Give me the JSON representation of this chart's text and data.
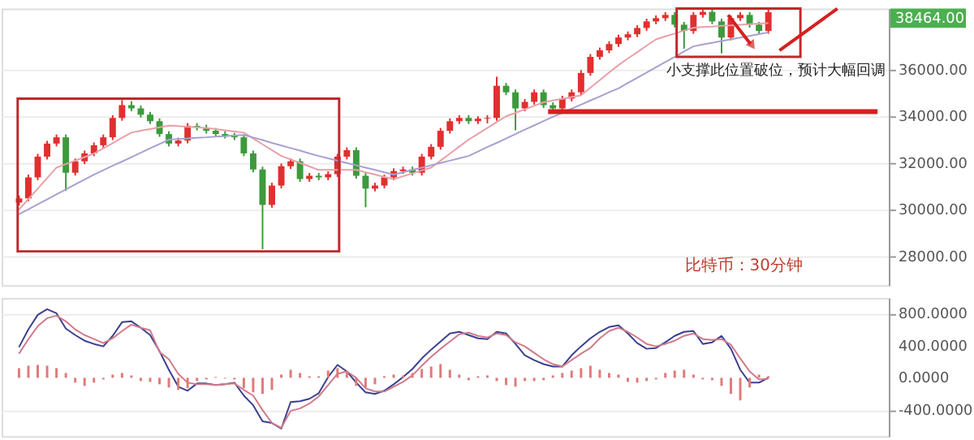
{
  "chart_data": [
    {
      "type": "candlestick",
      "categories": [
        null,
        null,
        null,
        null,
        null,
        null,
        null,
        null,
        null,
        null,
        null,
        null,
        null,
        null,
        null,
        null,
        null,
        null,
        null,
        null,
        null,
        null,
        null,
        null,
        null,
        null,
        null,
        null,
        null,
        null,
        null,
        null,
        null,
        null,
        null,
        null,
        null,
        null,
        null,
        null,
        null,
        null,
        null,
        null,
        null,
        null,
        null,
        null,
        null,
        null,
        null,
        null,
        null,
        null,
        null,
        null,
        null,
        null,
        null,
        null,
        null,
        null,
        null,
        null,
        null,
        null,
        null,
        null,
        null,
        null,
        null,
        null,
        null,
        null,
        null,
        null,
        null,
        null,
        null,
        null,
        null
      ],
      "ohlc": [
        [
          30300,
          30600,
          30180,
          30480
        ],
        [
          30480,
          31500,
          30360,
          31380
        ],
        [
          31380,
          32390,
          31260,
          32270
        ],
        [
          32270,
          32950,
          32150,
          32830
        ],
        [
          32830,
          33220,
          32710,
          33100
        ],
        [
          33100,
          33220,
          30800,
          31580
        ],
        [
          31580,
          32190,
          31460,
          32070
        ],
        [
          32070,
          32530,
          31950,
          32410
        ],
        [
          32410,
          32880,
          32290,
          32760
        ],
        [
          32760,
          33220,
          32640,
          33100
        ],
        [
          33100,
          34050,
          32980,
          33930
        ],
        [
          33930,
          34700,
          33810,
          34480
        ],
        [
          34480,
          34650,
          34220,
          34340
        ],
        [
          34340,
          34460,
          33950,
          34070
        ],
        [
          34070,
          34190,
          33670,
          33790
        ],
        [
          33790,
          33910,
          33120,
          33240
        ],
        [
          33240,
          33360,
          32710,
          32830
        ],
        [
          32830,
          33080,
          32710,
          32960
        ],
        [
          32960,
          33710,
          32840,
          33590
        ],
        [
          33590,
          33710,
          33400,
          33520
        ],
        [
          33520,
          33640,
          33260,
          33380
        ],
        [
          33380,
          33500,
          33120,
          33240
        ],
        [
          33240,
          33360,
          33050,
          33170
        ],
        [
          33170,
          33290,
          32980,
          33100
        ],
        [
          33100,
          33220,
          32290,
          32410
        ],
        [
          32410,
          32530,
          31600,
          31720
        ],
        [
          31720,
          31840,
          28300,
          30200
        ],
        [
          30200,
          31150,
          30080,
          31030
        ],
        [
          31030,
          31980,
          30910,
          31860
        ],
        [
          31860,
          32190,
          31740,
          32070
        ],
        [
          32070,
          32190,
          31190,
          31310
        ],
        [
          31310,
          31570,
          31190,
          31450
        ],
        [
          31450,
          31570,
          31260,
          31380
        ],
        [
          31380,
          31640,
          31260,
          31520
        ],
        [
          31520,
          32390,
          31400,
          32270
        ],
        [
          32270,
          32670,
          32150,
          32550
        ],
        [
          32550,
          32670,
          31330,
          31450
        ],
        [
          31450,
          31570,
          30100,
          30900
        ],
        [
          30900,
          31150,
          30780,
          31030
        ],
        [
          31030,
          31500,
          30910,
          31380
        ],
        [
          31380,
          31770,
          31260,
          31650
        ],
        [
          31650,
          31840,
          31530,
          31720
        ],
        [
          31720,
          31840,
          31460,
          31580
        ],
        [
          31580,
          32390,
          31460,
          32270
        ],
        [
          32270,
          32810,
          32150,
          32690
        ],
        [
          32690,
          33500,
          32570,
          33380
        ],
        [
          33380,
          33910,
          33260,
          33790
        ],
        [
          33790,
          34050,
          33670,
          33930
        ],
        [
          33930,
          34050,
          33670,
          33790
        ],
        [
          33790,
          34000,
          33670,
          33900
        ],
        [
          33900,
          34050,
          33700,
          33930
        ],
        [
          33930,
          35700,
          33810,
          35310
        ],
        [
          35310,
          35430,
          34910,
          35030
        ],
        [
          35030,
          35150,
          33400,
          34340
        ],
        [
          34340,
          34740,
          34220,
          34620
        ],
        [
          34620,
          35150,
          34500,
          35030
        ],
        [
          35030,
          35150,
          34360,
          34480
        ],
        [
          34480,
          34600,
          34220,
          34340
        ],
        [
          34340,
          34880,
          34220,
          34760
        ],
        [
          34760,
          35150,
          34640,
          35030
        ],
        [
          35030,
          35980,
          34910,
          35860
        ],
        [
          35860,
          36670,
          35740,
          36550
        ],
        [
          36550,
          36950,
          36430,
          36830
        ],
        [
          36830,
          37220,
          36710,
          37100
        ],
        [
          37100,
          37500,
          36980,
          37380
        ],
        [
          37380,
          37640,
          37260,
          37520
        ],
        [
          37520,
          37910,
          37400,
          37790
        ],
        [
          37790,
          38190,
          37670,
          38070
        ],
        [
          38070,
          38330,
          37950,
          38210
        ],
        [
          38210,
          38470,
          38090,
          38350
        ],
        [
          38350,
          38470,
          37810,
          37930
        ],
        [
          37930,
          38050,
          36900,
          37660
        ],
        [
          37660,
          38470,
          37540,
          38350
        ],
        [
          38350,
          38600,
          38230,
          38480
        ],
        [
          38480,
          38600,
          37950,
          38070
        ],
        [
          38070,
          38190,
          36700,
          37380
        ],
        [
          37380,
          38330,
          37260,
          38210
        ],
        [
          38210,
          38470,
          38090,
          38350
        ],
        [
          38350,
          38470,
          37810,
          37930
        ],
        [
          37930,
          38050,
          37540,
          37660
        ],
        [
          37660,
          38580,
          37540,
          38464
        ]
      ],
      "colors": [
        "#e0302f",
        "#e0302f",
        "#e0302f",
        "#e0302f",
        "#e0302f",
        "#3c9a3c",
        "#e0302f",
        "#e0302f",
        "#e0302f",
        "#e0302f",
        "#e0302f",
        "#e0302f",
        "#3c9a3c",
        "#3c9a3c",
        "#3c9a3c",
        "#3c9a3c",
        "#3c9a3c",
        "#e0302f",
        "#e0302f",
        "#3c9a3c",
        "#3c9a3c",
        "#3c9a3c",
        "#3c9a3c",
        "#3c9a3c",
        "#3c9a3c",
        "#3c9a3c",
        "#3c9a3c",
        "#e0302f",
        "#e0302f",
        "#e0302f",
        "#3c9a3c",
        "#e0302f",
        "#3c9a3c",
        "#e0302f",
        "#e0302f",
        "#e0302f",
        "#3c9a3c",
        "#3c9a3c",
        "#e0302f",
        "#e0302f",
        "#e0302f",
        "#e0302f",
        "#3c9a3c",
        "#e0302f",
        "#e0302f",
        "#e0302f",
        "#e0302f",
        "#e0302f",
        "#3c9a3c",
        "#e0302f",
        "#e0302f",
        "#e0302f",
        "#3c9a3c",
        "#3c9a3c",
        "#e0302f",
        "#e0302f",
        "#3c9a3c",
        "#3c9a3c",
        "#e0302f",
        "#e0302f",
        "#e0302f",
        "#e0302f",
        "#e0302f",
        "#e0302f",
        "#e0302f",
        "#e0302f",
        "#e0302f",
        "#e0302f",
        "#e0302f",
        "#e0302f",
        "#3c9a3c",
        "#3c9a3c",
        "#e0302f",
        "#e0302f",
        "#3c9a3c",
        "#3c9a3c",
        "#e0302f",
        "#e0302f",
        "#3c9a3c",
        "#3c9a3c",
        "#e0302f"
      ],
      "series": [
        {
          "type": "line",
          "color": "#e8a0a8",
          "values": [
            30000,
            30450,
            30900,
            31350,
            31800,
            31950,
            32100,
            32250,
            32400,
            32630,
            32850,
            33080,
            33300,
            33380,
            33450,
            33530,
            33600,
            33580,
            33550,
            33530,
            33500,
            33450,
            33400,
            33350,
            33300,
            33050,
            32800,
            32550,
            32300,
            32150,
            32000,
            31850,
            31700,
            31700,
            31700,
            31700,
            31700,
            31600,
            31500,
            31400,
            31300,
            31430,
            31550,
            31680,
            31800,
            32100,
            32400,
            32700,
            33000,
            33250,
            33500,
            33750,
            34000,
            34150,
            34300,
            34450,
            34600,
            34680,
            34750,
            34830,
            34900,
            35230,
            35550,
            35880,
            36200,
            36480,
            36750,
            37030,
            37300,
            37430,
            37550,
            37680,
            37800,
            37830,
            37850,
            37880,
            37900,
            37930,
            37950,
            37980,
            38000
          ]
        },
        {
          "type": "line",
          "color": "#a8a0d0",
          "values": [
            29800,
            30010,
            30230,
            30440,
            30650,
            30860,
            31080,
            31290,
            31500,
            31690,
            31880,
            32060,
            32250,
            32440,
            32630,
            32810,
            33000,
            33030,
            33050,
            33080,
            33100,
            33130,
            33150,
            33180,
            33200,
            33090,
            32980,
            32860,
            32750,
            32640,
            32530,
            32410,
            32300,
            32200,
            32100,
            32000,
            31900,
            31800,
            31700,
            31600,
            31500,
            31600,
            31700,
            31800,
            31900,
            32000,
            32100,
            32200,
            32300,
            32490,
            32680,
            32860,
            33050,
            33240,
            33430,
            33610,
            33800,
            33980,
            34150,
            34330,
            34500,
            34680,
            34850,
            35030,
            35200,
            35430,
            35650,
            35880,
            36100,
            36330,
            36550,
            36780,
            37000,
            37080,
            37150,
            37230,
            37300,
            37380,
            37450,
            37530,
            37600
          ]
        }
      ],
      "ylim": [
        26760,
        38620
      ],
      "yticks": [
        {
          "value": 28000,
          "label": "28000.00"
        },
        {
          "value": 30000,
          "label": "30000.00"
        },
        {
          "value": 32000,
          "label": "32000.00"
        },
        {
          "value": 34000,
          "label": "34000.00"
        },
        {
          "value": 36000,
          "label": "36000.00"
        }
      ],
      "ref_lines": [
        {
          "axis": "y",
          "value": 34200,
          "color": "#d42020"
        }
      ],
      "annotations": [
        "小支撑此位置破位，预计大幅回调",
        "38464.00",
        "比特币：30分钟"
      ],
      "grid": "y",
      "tick_labels": "y"
    },
    {
      "type": "line",
      "categories": [
        null,
        null,
        null,
        null,
        null,
        null,
        null,
        null,
        null,
        null,
        null,
        null,
        null,
        null,
        null,
        null,
        null,
        null,
        null,
        null,
        null,
        null,
        null,
        null,
        null,
        null,
        null,
        null,
        null,
        null,
        null,
        null,
        null,
        null,
        null,
        null,
        null,
        null,
        null,
        null,
        null,
        null,
        null,
        null,
        null,
        null,
        null,
        null,
        null,
        null,
        null,
        null,
        null,
        null,
        null,
        null,
        null,
        null,
        null,
        null,
        null,
        null,
        null,
        null,
        null,
        null,
        null,
        null,
        null,
        null,
        null,
        null,
        null,
        null,
        null,
        null,
        null,
        null,
        null,
        null,
        null
      ],
      "series": [
        {
          "color": "#3b3f8f",
          "values": [
            380,
            600,
            780,
            850,
            800,
            610,
            530,
            460,
            420,
            390,
            520,
            690,
            700,
            620,
            530,
            330,
            100,
            -110,
            -160,
            -70,
            -70,
            -90,
            -80,
            -60,
            -220,
            -340,
            -540,
            -560,
            -630,
            -300,
            -290,
            -260,
            -190,
            10,
            160,
            80,
            -60,
            -180,
            -200,
            -160,
            -80,
            10,
            110,
            240,
            350,
            450,
            550,
            570,
            530,
            490,
            480,
            570,
            550,
            420,
            280,
            220,
            170,
            140,
            140,
            280,
            390,
            490,
            570,
            630,
            650,
            550,
            430,
            360,
            370,
            440,
            520,
            570,
            580,
            420,
            440,
            520,
            360,
            100,
            -60,
            -60,
            0
          ]
        },
        {
          "color": "#d07a8a",
          "values": [
            300,
            480,
            640,
            740,
            770,
            700,
            600,
            530,
            480,
            430,
            490,
            580,
            660,
            620,
            590,
            320,
            230,
            50,
            -60,
            -80,
            -80,
            -90,
            -80,
            -70,
            -150,
            -220,
            -400,
            -560,
            -620,
            -410,
            -380,
            -320,
            -230,
            -90,
            50,
            80,
            0,
            -130,
            -170,
            -170,
            -110,
            -50,
            30,
            150,
            260,
            360,
            450,
            540,
            560,
            520,
            500,
            550,
            530,
            440,
            390,
            310,
            230,
            170,
            140,
            220,
            300,
            370,
            490,
            580,
            620,
            570,
            500,
            420,
            390,
            420,
            460,
            520,
            550,
            480,
            470,
            480,
            410,
            240,
            80,
            -20,
            -10
          ]
        },
        {
          "type": "bar",
          "color": "#e07a7a",
          "values": [
            120,
            150,
            160,
            150,
            120,
            60,
            -60,
            -100,
            -60,
            -20,
            40,
            60,
            30,
            -40,
            -50,
            -80,
            -120,
            -150,
            -130,
            -40,
            -20,
            10,
            -10,
            -20,
            -130,
            -180,
            -200,
            -150,
            40,
            100,
            60,
            20,
            20,
            90,
            120,
            80,
            -100,
            -120,
            -80,
            20,
            40,
            30,
            60,
            110,
            140,
            170,
            100,
            40,
            -30,
            20,
            30,
            -40,
            -90,
            -110,
            -40,
            -40,
            -30,
            30,
            60,
            90,
            120,
            150,
            100,
            60,
            40,
            -50,
            -60,
            -40,
            -20,
            60,
            90,
            100,
            40,
            -20,
            -30,
            -100,
            -200,
            -280,
            -120,
            40,
            20
          ]
        }
      ],
      "ylim": [
        -724,
        990
      ],
      "yticks": [
        {
          "value": -400,
          "label": "-400.0000"
        },
        {
          "value": 0,
          "label": "0.0000"
        },
        {
          "value": 400,
          "label": "400.0000"
        },
        {
          "value": 800,
          "label": "800.0000"
        }
      ],
      "grid": "y",
      "tick_labels": "y"
    }
  ]
}
